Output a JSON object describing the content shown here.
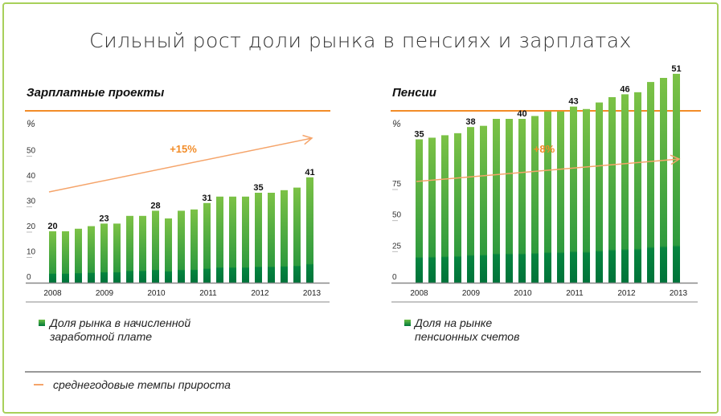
{
  "title": "Сильный рост доли рынка в пенсиях и зарплатах",
  "colors": {
    "accent": "#f28c28",
    "bar_top": "#76c043",
    "bar_bottom": "#00773b",
    "frame": "#a8d05a"
  },
  "footer_legend": "среднегодовые темпы прироста",
  "chart_data": [
    {
      "type": "bar",
      "title": "Зарплатные проекты",
      "ylabel": "%",
      "yticks": [
        0,
        10,
        20,
        30,
        40,
        50
      ],
      "ylim": [
        0,
        55
      ],
      "xticks": [
        "2008",
        "2009",
        "2010",
        "2011",
        "2012",
        "2013"
      ],
      "values": [
        20,
        20,
        21,
        22,
        23,
        23,
        26,
        26,
        28,
        25,
        28,
        28.5,
        31,
        33.5,
        33.5,
        33.5,
        35,
        35,
        36,
        37,
        41
      ],
      "data_labels": [
        {
          "index": 0,
          "text": "20"
        },
        {
          "index": 4,
          "text": "23"
        },
        {
          "index": 8,
          "text": "28"
        },
        {
          "index": 12,
          "text": "31"
        },
        {
          "index": 16,
          "text": "35"
        },
        {
          "index": 20,
          "text": "41"
        }
      ],
      "trend_label": "+15%",
      "legend": [
        "Доля рынка в начисленной",
        "заработной плате"
      ]
    },
    {
      "type": "bar",
      "title": "Пенсии",
      "ylabel": "%",
      "yticks": [
        0,
        25,
        50,
        75
      ],
      "ylim": [
        0,
        85
      ],
      "xticks": [
        "2008",
        "2009",
        "2010",
        "2011",
        "2012",
        "2013"
      ],
      "values": [
        35,
        35.4,
        36,
        36.5,
        38,
        38.3,
        40,
        40,
        40,
        40.7,
        41.8,
        41.8,
        43,
        42.4,
        44,
        45.3,
        46,
        46.5,
        49,
        50,
        51
      ],
      "data_labels": [
        {
          "index": 0,
          "text": "35"
        },
        {
          "index": 4,
          "text": "38"
        },
        {
          "index": 8,
          "text": "40"
        },
        {
          "index": 12,
          "text": "43"
        },
        {
          "index": 16,
          "text": "46"
        },
        {
          "index": 20,
          "text": "51"
        }
      ],
      "trend_label": "+8%",
      "legend": [
        "Доля на рынке",
        "пенсионных счетов"
      ]
    }
  ]
}
